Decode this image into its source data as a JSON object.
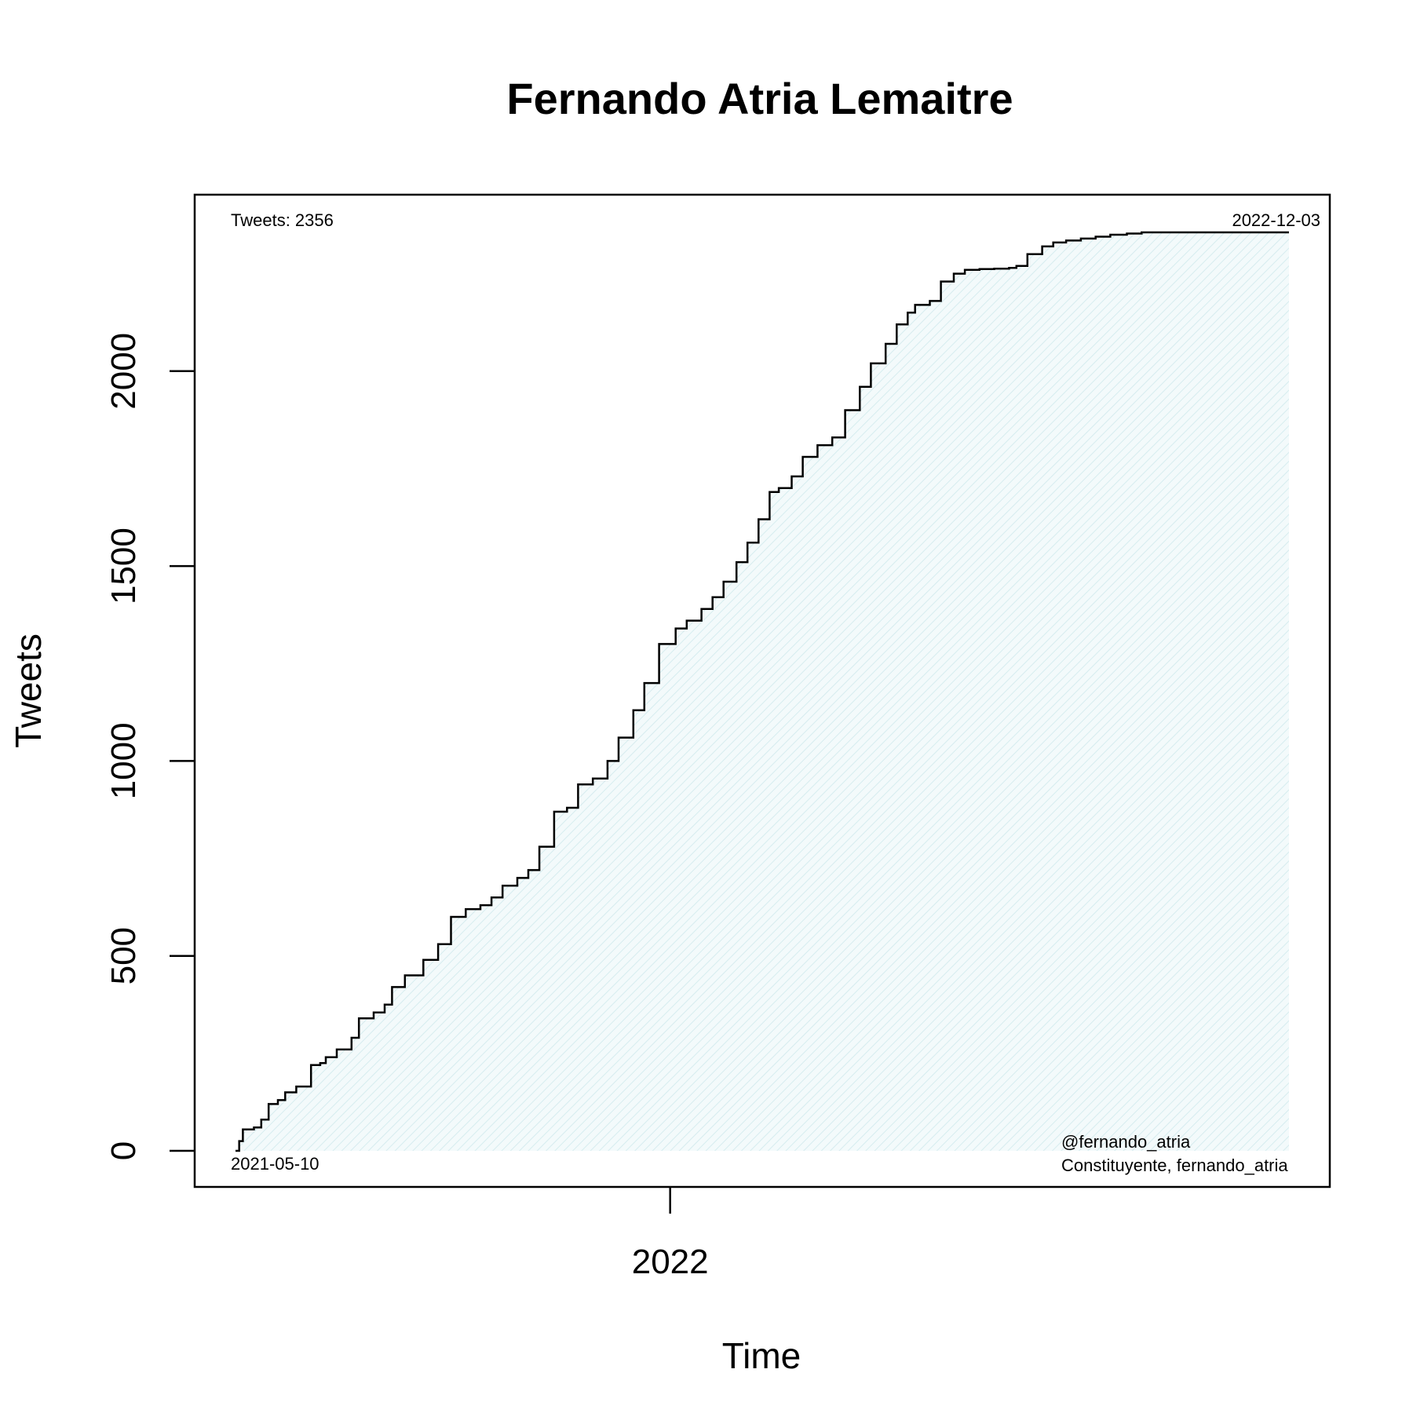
{
  "chart_data": {
    "type": "area",
    "title": "Fernando Atria Lemaitre",
    "xlabel": "Time",
    "ylabel": "Tweets",
    "x_range": [
      "2021-05-10",
      "2022-12-03"
    ],
    "y_range": [
      0,
      2356
    ],
    "y_ticks": [
      0,
      500,
      1000,
      1500,
      2000
    ],
    "x_ticks": [
      {
        "date": "2022-01-01",
        "label": "2022"
      }
    ],
    "annotations": {
      "top_left": "Tweets: 2356",
      "top_right": "2022-12-03",
      "bottom_left": "2021-05-10",
      "bottom_right_1": "@fernando_atria",
      "bottom_right_2": "Constituyente, fernando_atria"
    },
    "series": [
      {
        "x": [
          "2021-05-10",
          "2021-05-12",
          "2021-05-14",
          "2021-05-20",
          "2021-05-24",
          "2021-05-28",
          "2021-06-02",
          "2021-06-06",
          "2021-06-12",
          "2021-06-20",
          "2021-06-25",
          "2021-06-28",
          "2021-07-04",
          "2021-07-12",
          "2021-07-16",
          "2021-07-24",
          "2021-07-30",
          "2021-08-03",
          "2021-08-10",
          "2021-08-20",
          "2021-08-28",
          "2021-09-04",
          "2021-09-12",
          "2021-09-20",
          "2021-09-26",
          "2021-10-02",
          "2021-10-10",
          "2021-10-16",
          "2021-10-22",
          "2021-10-30",
          "2021-11-06",
          "2021-11-12",
          "2021-11-20",
          "2021-11-28",
          "2021-12-04",
          "2021-12-12",
          "2021-12-18",
          "2021-12-26",
          "2022-01-04",
          "2022-01-10",
          "2022-01-18",
          "2022-01-24",
          "2022-01-30",
          "2022-02-06",
          "2022-02-12",
          "2022-02-18",
          "2022-02-24",
          "2022-03-01",
          "2022-03-08",
          "2022-03-14",
          "2022-03-22",
          "2022-03-30",
          "2022-04-06",
          "2022-04-14",
          "2022-04-20",
          "2022-04-28",
          "2022-05-04",
          "2022-05-10",
          "2022-05-14",
          "2022-05-22",
          "2022-05-28",
          "2022-06-04",
          "2022-06-10",
          "2022-06-18",
          "2022-06-26",
          "2022-07-04",
          "2022-07-08",
          "2022-07-14",
          "2022-07-22",
          "2022-07-28",
          "2022-08-04",
          "2022-08-12",
          "2022-08-20",
          "2022-08-28",
          "2022-09-06",
          "2022-09-14",
          "2022-09-22",
          "2022-10-01",
          "2022-10-10",
          "2022-10-20",
          "2022-10-31",
          "2022-11-10",
          "2022-11-20",
          "2022-11-28",
          "2022-12-03"
        ],
        "y": [
          0,
          25,
          55,
          60,
          80,
          120,
          130,
          150,
          165,
          220,
          225,
          240,
          260,
          290,
          340,
          355,
          375,
          420,
          450,
          490,
          530,
          600,
          620,
          630,
          650,
          680,
          700,
          720,
          780,
          870,
          880,
          940,
          955,
          1000,
          1060,
          1130,
          1200,
          1300,
          1340,
          1360,
          1390,
          1420,
          1460,
          1510,
          1560,
          1620,
          1690,
          1700,
          1730,
          1780,
          1810,
          1830,
          1900,
          1960,
          2020,
          2070,
          2120,
          2150,
          2170,
          2180,
          2230,
          2250,
          2260,
          2262,
          2263,
          2265,
          2270,
          2300,
          2320,
          2330,
          2335,
          2340,
          2345,
          2350,
          2353,
          2356,
          2356,
          2356,
          2356,
          2356,
          2356,
          2356,
          2356,
          2356,
          2356
        ]
      }
    ]
  }
}
